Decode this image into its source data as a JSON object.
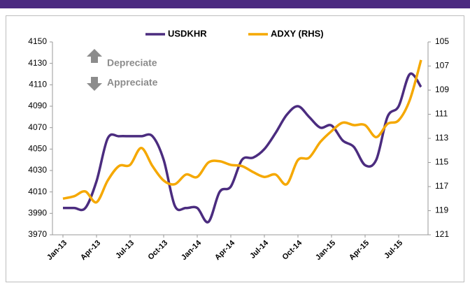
{
  "chart_data": {
    "type": "line",
    "categories": [
      "Jan-13",
      null,
      null,
      "Apr-13",
      null,
      null,
      "Jul-13",
      null,
      null,
      "Oct-13",
      null,
      null,
      "Jan-14",
      null,
      null,
      "Apr-14",
      null,
      null,
      "Jul-14",
      null,
      null,
      "Oct-14",
      null,
      null,
      "Jan-15",
      null,
      null,
      "Apr-15",
      null,
      null,
      "Jul-15",
      null,
      null
    ],
    "series": [
      {
        "name": "USDKHR",
        "color": "#4b2c7f",
        "values": [
          3995,
          3995,
          3995,
          4020,
          4060,
          4062,
          4062,
          4062,
          4062,
          4040,
          3997,
          3995,
          3995,
          3982,
          4010,
          4015,
          4040,
          4042,
          4050,
          4065,
          4082,
          4090,
          4080,
          4070,
          4072,
          4058,
          4052,
          4035,
          4040,
          4080,
          4090,
          4120,
          4108
        ]
      },
      {
        "name": "ADXY (RHS)",
        "color": "#f5a800",
        "axis": "y2",
        "values": [
          118.0,
          117.8,
          117.4,
          118.3,
          116.5,
          115.3,
          115.2,
          113.8,
          115.3,
          116.5,
          116.8,
          116.0,
          116.2,
          115.0,
          114.9,
          115.2,
          115.3,
          115.8,
          116.2,
          116.0,
          116.8,
          114.8,
          114.6,
          113.3,
          112.4,
          111.7,
          111.9,
          111.9,
          112.9,
          111.8,
          111.5,
          109.8,
          106.5
        ]
      }
    ],
    "ylim": [
      3970,
      4150
    ],
    "yticks": [
      3970,
      3990,
      4010,
      4030,
      4050,
      4070,
      4090,
      4110,
      4130,
      4150
    ],
    "y2lim": [
      121,
      105
    ],
    "y2ticks": [
      121,
      119,
      117,
      115,
      113,
      111,
      109,
      107,
      105
    ],
    "annotations": [
      "Depreciate",
      "Appreciate"
    ],
    "legend": "top"
  }
}
